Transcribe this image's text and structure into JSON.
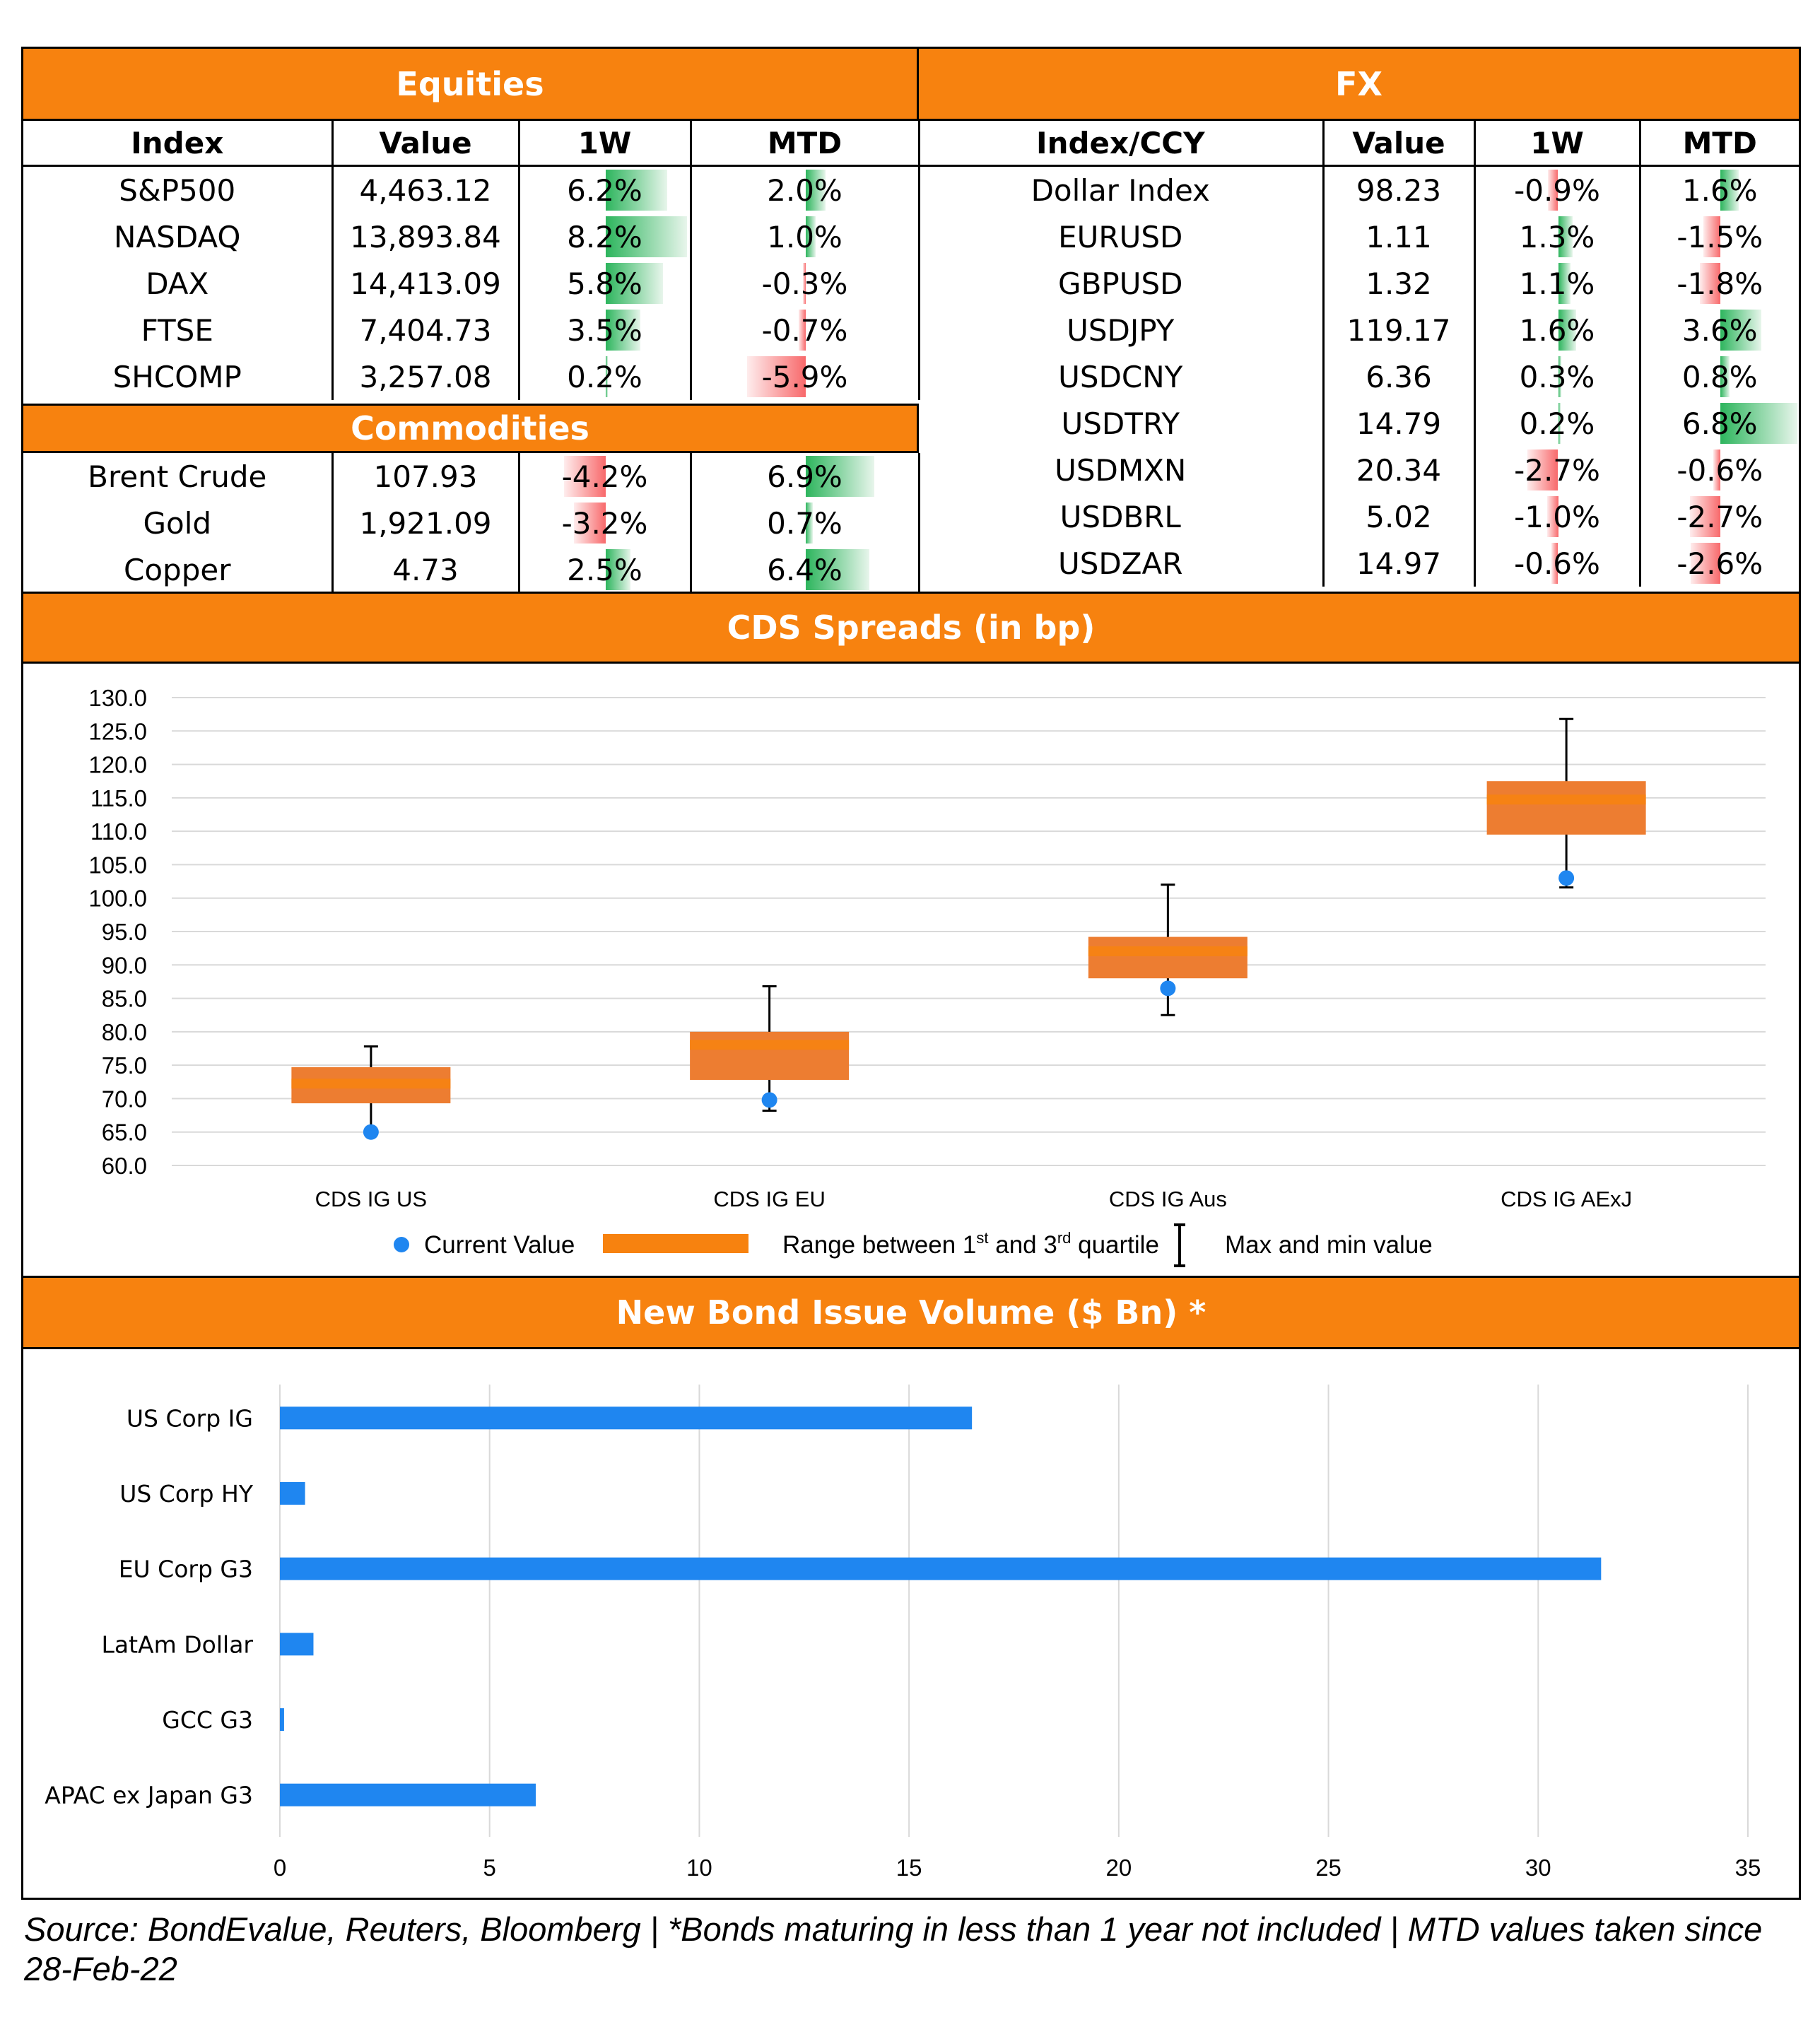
{
  "equities": {
    "title": "Equities",
    "headers": [
      "Index",
      "Value",
      "1W",
      "MTD"
    ],
    "rows": [
      {
        "name": "S&P500",
        "value": "4,463.12",
        "w1": "6.2%",
        "mtd": "2.0%"
      },
      {
        "name": "NASDAQ",
        "value": "13,893.84",
        "w1": "8.2%",
        "mtd": "1.0%"
      },
      {
        "name": "DAX",
        "value": "14,413.09",
        "w1": "5.8%",
        "mtd": "-0.3%"
      },
      {
        "name": "FTSE",
        "value": "7,404.73",
        "w1": "3.5%",
        "mtd": "-0.7%"
      },
      {
        "name": "SHCOMP",
        "value": "3,257.08",
        "w1": "0.2%",
        "mtd": "-5.9%"
      }
    ]
  },
  "commodities": {
    "title": "Commodities",
    "rows": [
      {
        "name": "Brent Crude",
        "value": "107.93",
        "w1": "-4.2%",
        "mtd": "6.9%"
      },
      {
        "name": "Gold",
        "value": "1,921.09",
        "w1": "-3.2%",
        "mtd": "0.7%"
      },
      {
        "name": "Copper",
        "value": "4.73",
        "w1": "2.5%",
        "mtd": "6.4%"
      }
    ]
  },
  "fx": {
    "title": "FX",
    "headers": [
      "Index/CCY",
      "Value",
      "1W",
      "MTD"
    ],
    "rows": [
      {
        "name": "Dollar Index",
        "value": "98.23",
        "w1": "-0.9%",
        "mtd": "1.6%"
      },
      {
        "name": "EURUSD",
        "value": "1.11",
        "w1": "1.3%",
        "mtd": "-1.5%"
      },
      {
        "name": "GBPUSD",
        "value": "1.32",
        "w1": "1.1%",
        "mtd": "-1.8%"
      },
      {
        "name": "USDJPY",
        "value": "119.17",
        "w1": "1.6%",
        "mtd": "3.6%"
      },
      {
        "name": "USDCNY",
        "value": "6.36",
        "w1": "0.3%",
        "mtd": "0.8%"
      },
      {
        "name": "USDTRY",
        "value": "14.79",
        "w1": "0.2%",
        "mtd": "6.8%"
      },
      {
        "name": "USDMXN",
        "value": "20.34",
        "w1": "-2.7%",
        "mtd": "-0.6%"
      },
      {
        "name": "USDBRL",
        "value": "5.02",
        "w1": "-1.0%",
        "mtd": "-2.7%"
      },
      {
        "name": "USDZAR",
        "value": "14.97",
        "w1": "-0.6%",
        "mtd": "-2.6%"
      }
    ]
  },
  "colors": {
    "header_orange": "#F7820F",
    "box_orange": "#ED7D31",
    "dot_blue": "#1F86F0",
    "bar_blue": "#1F86F0",
    "positive_green": "#2DB55D",
    "negative_red": "#F8696B"
  },
  "chart_data": [
    {
      "type": "box",
      "title": "CDS Spreads (in bp)",
      "categories": [
        "CDS IG US",
        "CDS IG EU",
        "CDS IG Aus",
        "CDS IG AExJ"
      ],
      "ylim": [
        60,
        130
      ],
      "yticks": [
        "130.0",
        "125.0",
        "120.0",
        "115.0",
        "110.0",
        "105.0",
        "100.0",
        "95.0",
        "90.0",
        "85.0",
        "80.0",
        "75.0",
        "70.0",
        "65.0",
        "60.0"
      ],
      "grid": true,
      "legend_position": "bottom",
      "series": [
        {
          "name": "Current Value",
          "values": [
            65.0,
            69.8,
            86.5,
            103.0
          ]
        },
        {
          "name": "Range between 1st and 3rd quartile",
          "q1": [
            69.3,
            72.8,
            88.0,
            109.5
          ],
          "median": [
            71.5,
            77.3,
            91.3,
            114.0
          ],
          "q3": [
            74.7,
            80.0,
            94.2,
            117.5
          ]
        },
        {
          "name": "Max and min value",
          "min": [
            65.0,
            68.2,
            82.5,
            101.6
          ],
          "max": [
            77.8,
            86.8,
            102.0,
            126.8
          ]
        }
      ],
      "legend": {
        "current": "Current Value",
        "range_pre": "Range between 1",
        "range_sup1": "st",
        "range_mid": " and 3",
        "range_sup2": "rd",
        "range_post": " quartile",
        "maxmin": "Max and min value"
      }
    },
    {
      "type": "bar",
      "orientation": "horizontal",
      "title": "New Bond Issue Volume ($ Bn) *",
      "categories": [
        "US Corp IG",
        "US Corp HY",
        "EU Corp G3",
        "LatAm Dollar",
        "GCC G3",
        "APAC ex Japan G3"
      ],
      "values": [
        16.5,
        0.6,
        31.5,
        0.8,
        0.1,
        6.1
      ],
      "xlim": [
        0,
        35
      ],
      "xticks": [
        "0",
        "5",
        "10",
        "15",
        "20",
        "25",
        "30",
        "35"
      ],
      "grid": true
    }
  ],
  "footer": {
    "caption": "Source: BondEvalue, Reuters, Bloomberg | *Bonds maturing in less than 1 year not included | MTD values taken since 28-Feb-22"
  }
}
